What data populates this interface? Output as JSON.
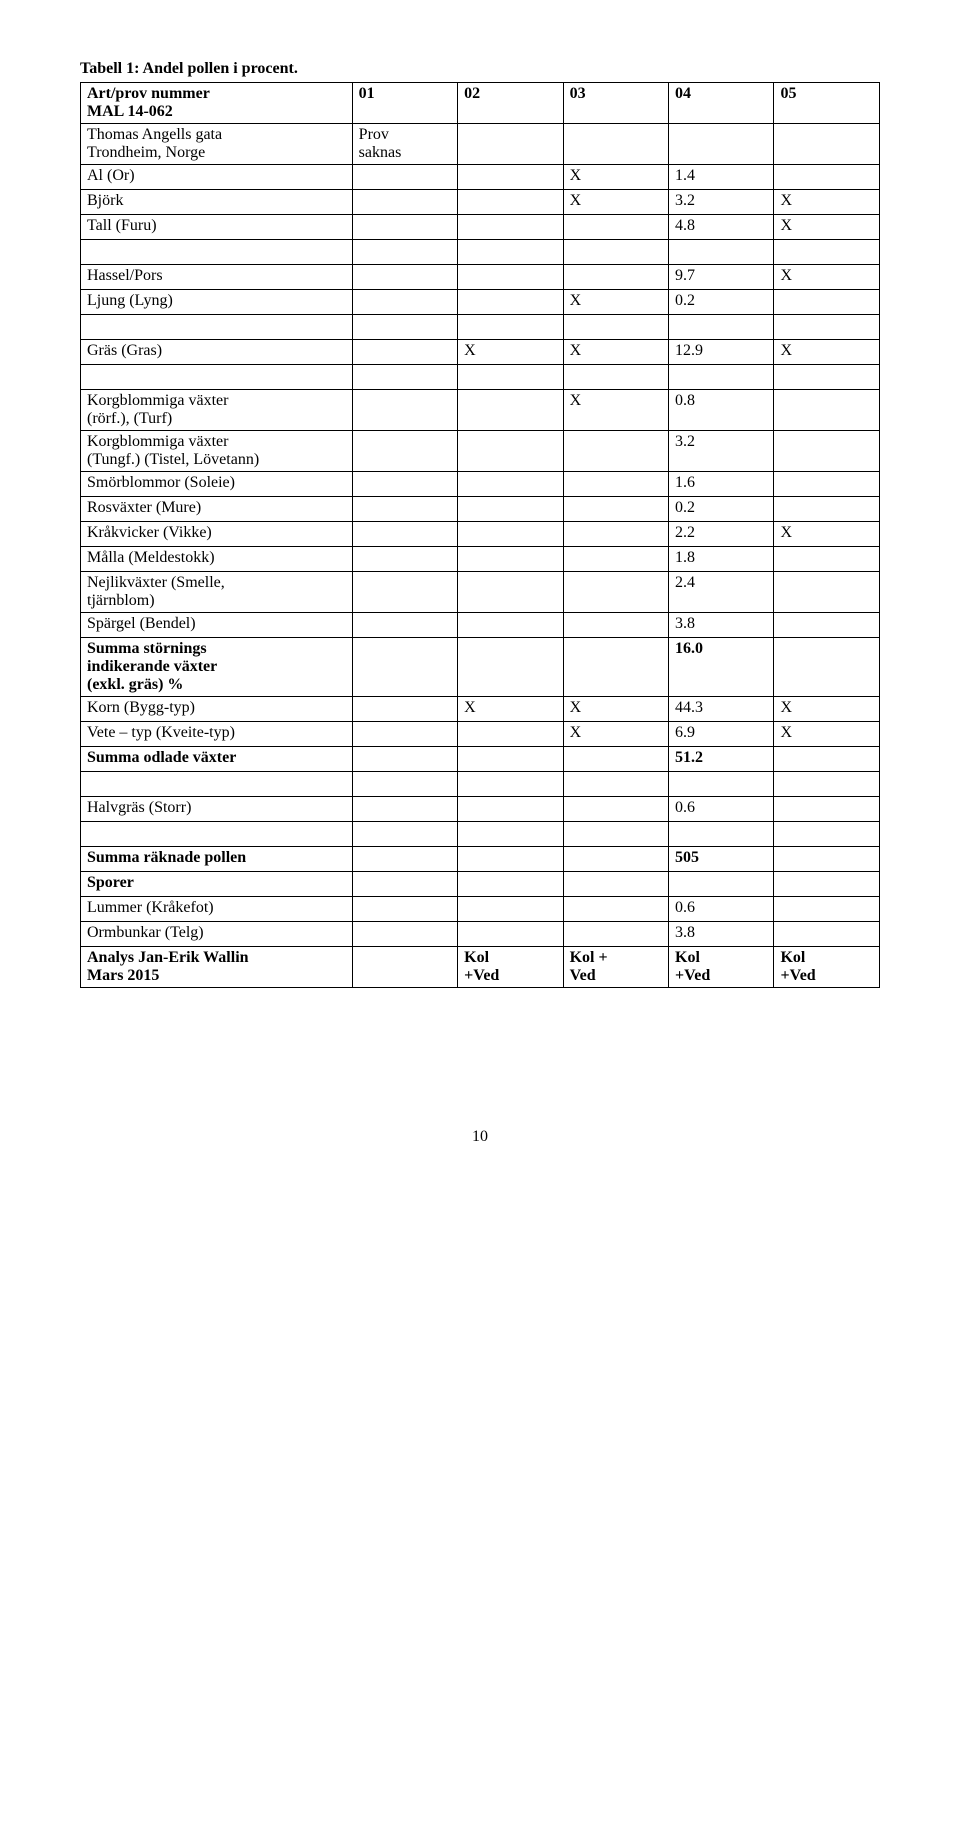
{
  "title": "Tabell 1: Andel pollen i procent.",
  "page_number": "10",
  "columns_count": 6,
  "rows": [
    {
      "bold": true,
      "cells": [
        "Art/prov nummer\n MAL 14-062",
        "01",
        "02",
        "03",
        "04",
        "05"
      ]
    },
    {
      "cells": [
        "Thomas Angells gata\nTrondheim, Norge",
        "Prov\nsaknas",
        "",
        "",
        "",
        ""
      ]
    },
    {
      "cells": [
        "Al (Or)",
        "",
        "",
        "X",
        "1.4",
        ""
      ]
    },
    {
      "cells": [
        "Björk",
        "",
        "",
        "X",
        "3.2",
        "X"
      ]
    },
    {
      "cells": [
        "Tall (Furu)",
        "",
        "",
        "",
        "4.8",
        "X"
      ]
    },
    {
      "cells": [
        "",
        "",
        "",
        "",
        "",
        ""
      ]
    },
    {
      "cells": [
        "Hassel/Pors",
        "",
        "",
        "",
        "9.7",
        "X"
      ]
    },
    {
      "cells": [
        "Ljung (Lyng)",
        "",
        "",
        "X",
        "0.2",
        ""
      ]
    },
    {
      "cells": [
        "",
        "",
        "",
        "",
        "",
        ""
      ]
    },
    {
      "cells": [
        "Gräs (Gras)",
        "",
        "X",
        "X",
        "12.9",
        "X"
      ]
    },
    {
      "cells": [
        "",
        "",
        "",
        "",
        "",
        ""
      ]
    },
    {
      "cells": [
        "Korgblommiga växter\n(rörf.), (Turf)",
        "",
        "",
        "X",
        "0.8",
        ""
      ]
    },
    {
      "cells": [
        "Korgblommiga växter\n(Tungf.)  (Tistel, Lövetann)",
        "",
        "",
        "",
        "3.2",
        ""
      ]
    },
    {
      "cells": [
        "Smörblommor (Soleie)",
        "",
        "",
        "",
        "1.6",
        ""
      ]
    },
    {
      "cells": [
        "Rosväxter (Mure)",
        "",
        "",
        "",
        "0.2",
        ""
      ]
    },
    {
      "cells": [
        "Kråkvicker (Vikke)",
        "",
        "",
        "",
        "2.2",
        "X"
      ]
    },
    {
      "cells": [
        "Målla (Meldestokk)",
        "",
        "",
        "",
        "1.8",
        ""
      ]
    },
    {
      "cells": [
        "Nejlikväxter (Smelle,\ntjärnblom)",
        "",
        "",
        "",
        "2.4",
        ""
      ]
    },
    {
      "cells": [
        "Spärgel (Bendel)",
        "",
        "",
        "",
        "3.8",
        ""
      ]
    },
    {
      "bold": true,
      "cells": [
        "Summa störnings\nindikerande växter\n(exkl. gräs) %",
        "",
        "",
        "",
        "16.0",
        ""
      ]
    },
    {
      "cells": [
        "Korn (Bygg-typ)",
        "",
        "X",
        "X",
        "44.3",
        "X"
      ]
    },
    {
      "cells": [
        "Vete – typ (Kveite-typ)",
        "",
        "",
        "X",
        "6.9",
        "X"
      ]
    },
    {
      "bold": true,
      "cells": [
        "Summa odlade växter",
        "",
        "",
        "",
        "51.2",
        ""
      ]
    },
    {
      "cells": [
        "",
        "",
        "",
        "",
        "",
        ""
      ]
    },
    {
      "cells": [
        "Halvgräs (Storr)",
        "",
        "",
        "",
        "0.6",
        ""
      ]
    },
    {
      "cells": [
        "",
        "",
        "",
        "",
        "",
        ""
      ]
    },
    {
      "bold": true,
      "cells": [
        "Summa räknade pollen",
        "",
        "",
        "",
        "505",
        ""
      ]
    },
    {
      "bold": true,
      "cells": [
        "Sporer",
        "",
        "",
        "",
        "",
        ""
      ]
    },
    {
      "cells": [
        "Lummer (Kråkefot)",
        "",
        "",
        "",
        "0.6",
        ""
      ]
    },
    {
      "cells": [
        "Ormbunkar (Telg)",
        "",
        "",
        "",
        "3.8",
        ""
      ]
    },
    {
      "bold": true,
      "cells": [
        "Analys Jan-Erik Wallin\nMars 2015",
        "",
        "Kol\n+Ved",
        "Kol +\nVed",
        "Kol\n+Ved",
        "Kol\n+Ved"
      ]
    }
  ]
}
